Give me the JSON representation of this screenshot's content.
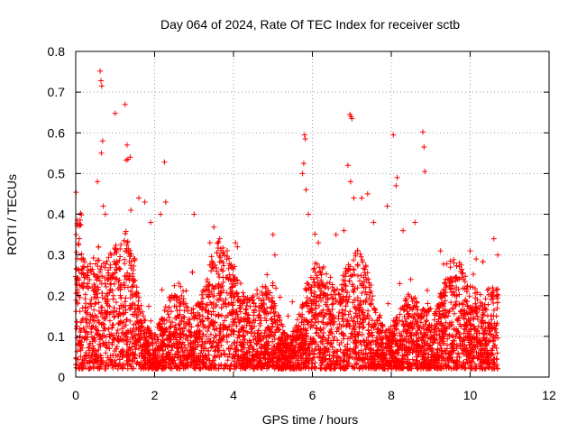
{
  "chart_data": {
    "type": "scatter",
    "title": "Day 064 of 2024, Rate Of TEC Index for receiver sctb",
    "xlabel": "GPS time / hours",
    "ylabel": "ROTI / TECUs",
    "xlim": [
      0,
      12
    ],
    "ylim": [
      0,
      0.8
    ],
    "xticks": [
      "0",
      "2",
      "4",
      "6",
      "8",
      "10",
      "12"
    ],
    "yticks": [
      "0",
      "0.1",
      "0.2",
      "0.3",
      "0.4",
      "0.5",
      "0.6",
      "0.7",
      "0.8"
    ],
    "grid": true,
    "marker": "plus",
    "series": [
      {
        "name": "ROTI",
        "color": "#ff0000",
        "x": [
          0.62,
          0.64,
          0.66,
          0.68,
          0.65,
          1.0,
          1.25,
          1.3,
          1.28,
          1.32,
          1.38,
          2.25,
          2.28,
          5.8,
          5.82,
          5.78,
          5.84,
          5.75,
          6.95,
          6.98,
          7.0,
          6.9,
          6.97,
          7.05,
          8.05,
          8.8,
          8.83,
          8.85,
          8.15,
          8.12,
          0.55,
          0.7,
          0.75,
          1.4,
          1.6,
          1.75,
          1.9,
          2.15,
          3.0,
          3.4,
          3.65,
          4.05,
          4.1,
          5.0,
          5.05,
          5.9,
          6.15,
          6.6,
          6.8,
          7.25,
          7.4,
          7.55,
          7.9,
          8.3,
          8.6,
          9.25,
          9.5,
          10.0,
          10.15,
          10.6,
          10.7
        ],
        "y": [
          0.752,
          0.728,
          0.715,
          0.58,
          0.55,
          0.648,
          0.67,
          0.57,
          0.533,
          0.535,
          0.54,
          0.528,
          0.43,
          0.595,
          0.585,
          0.525,
          0.46,
          0.5,
          0.645,
          0.64,
          0.635,
          0.52,
          0.48,
          0.44,
          0.595,
          0.602,
          0.565,
          0.505,
          0.49,
          0.47,
          0.48,
          0.42,
          0.4,
          0.41,
          0.44,
          0.43,
          0.38,
          0.4,
          0.4,
          0.33,
          0.34,
          0.33,
          0.32,
          0.35,
          0.3,
          0.4,
          0.33,
          0.35,
          0.36,
          0.44,
          0.45,
          0.38,
          0.42,
          0.36,
          0.38,
          0.31,
          0.27,
          0.31,
          0.29,
          0.34,
          0.3
        ],
        "dense_band": {
          "x_range": [
            0,
            10.7
          ],
          "typical_y_range": [
            0.02,
            0.3
          ],
          "note": "thousands of overlapping samples, mostly 0.03–0.25"
        }
      }
    ]
  }
}
